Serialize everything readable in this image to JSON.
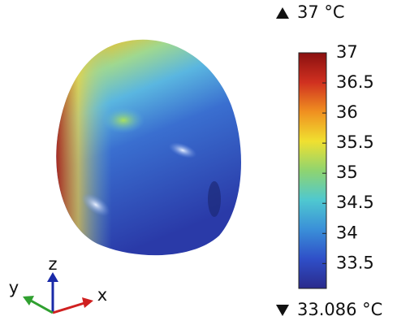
{
  "chart_data": {
    "type": "surface",
    "max_label": "37 °C",
    "min_label": "33.086 °C",
    "colorbar": {
      "lim": [
        33.086,
        37
      ],
      "ticks": [
        33.5,
        34,
        34.5,
        35,
        35.5,
        36,
        36.5,
        37
      ],
      "colormap": [
        "#2a2a8c",
        "#2f4fc8",
        "#3a8fd8",
        "#4fc8d0",
        "#8fd470",
        "#f0e030",
        "#f09020",
        "#d03020",
        "#8a1010"
      ]
    },
    "axes": {
      "x": "x",
      "y": "y",
      "z": "z"
    }
  }
}
